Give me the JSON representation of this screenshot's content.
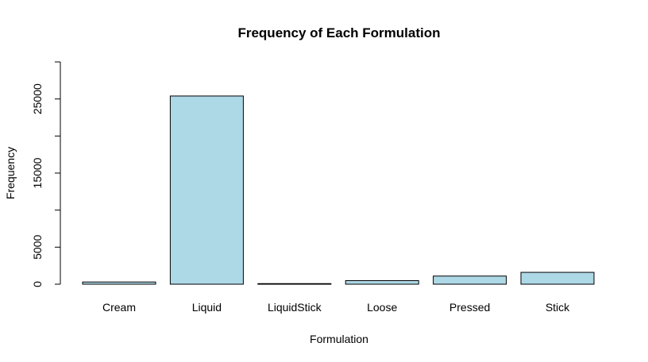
{
  "chart_data": {
    "type": "bar",
    "title": "Frequency of Each Formulation",
    "xlabel": "Formulation",
    "ylabel": "Frequency",
    "categories": [
      "Cream",
      "Liquid",
      "LiquidStick",
      "Loose",
      "Pressed",
      "Stick"
    ],
    "values": [
      300,
      25400,
      80,
      480,
      1100,
      1600
    ],
    "ylim": [
      0,
      30000
    ],
    "yticks": [
      0,
      5000,
      10000,
      15000,
      20000,
      25000,
      30000
    ],
    "ytick_labels": [
      "0",
      "5000",
      "",
      "15000",
      "",
      "25000",
      ""
    ],
    "bar_color": "#add8e6",
    "grid": false,
    "legend": "none"
  }
}
